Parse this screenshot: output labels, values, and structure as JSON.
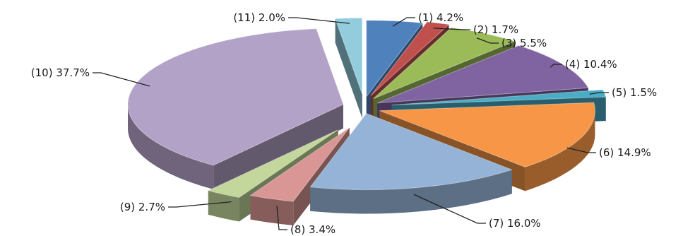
{
  "chart_data": {
    "type": "pie",
    "style": "3d-exploded",
    "title": "",
    "slices": [
      {
        "label": "(1) 4.2%",
        "value": 4.2,
        "color": "#4f81bd"
      },
      {
        "label": "(2) 1.7%",
        "value": 1.7,
        "color": "#c0504d"
      },
      {
        "label": "(3) 5.5%",
        "value": 5.5,
        "color": "#9bbb59"
      },
      {
        "label": "(4) 10.4%",
        "value": 10.4,
        "color": "#8064a2"
      },
      {
        "label": "(5) 1.5%",
        "value": 1.5,
        "color": "#4bacc6"
      },
      {
        "label": "(6) 14.9%",
        "value": 14.9,
        "color": "#f79646"
      },
      {
        "label": "(7) 16.0%",
        "value": 16.0,
        "color": "#95b3d7"
      },
      {
        "label": "(8) 3.4%",
        "value": 3.4,
        "color": "#d99694"
      },
      {
        "label": "(9) 2.7%",
        "value": 2.7,
        "color": "#c3d69b"
      },
      {
        "label": "(10) 37.7%",
        "value": 37.7,
        "color": "#b3a2c7"
      },
      {
        "label": "(11) 2.0%",
        "value": 2.0,
        "color": "#93cddd"
      }
    ]
  }
}
